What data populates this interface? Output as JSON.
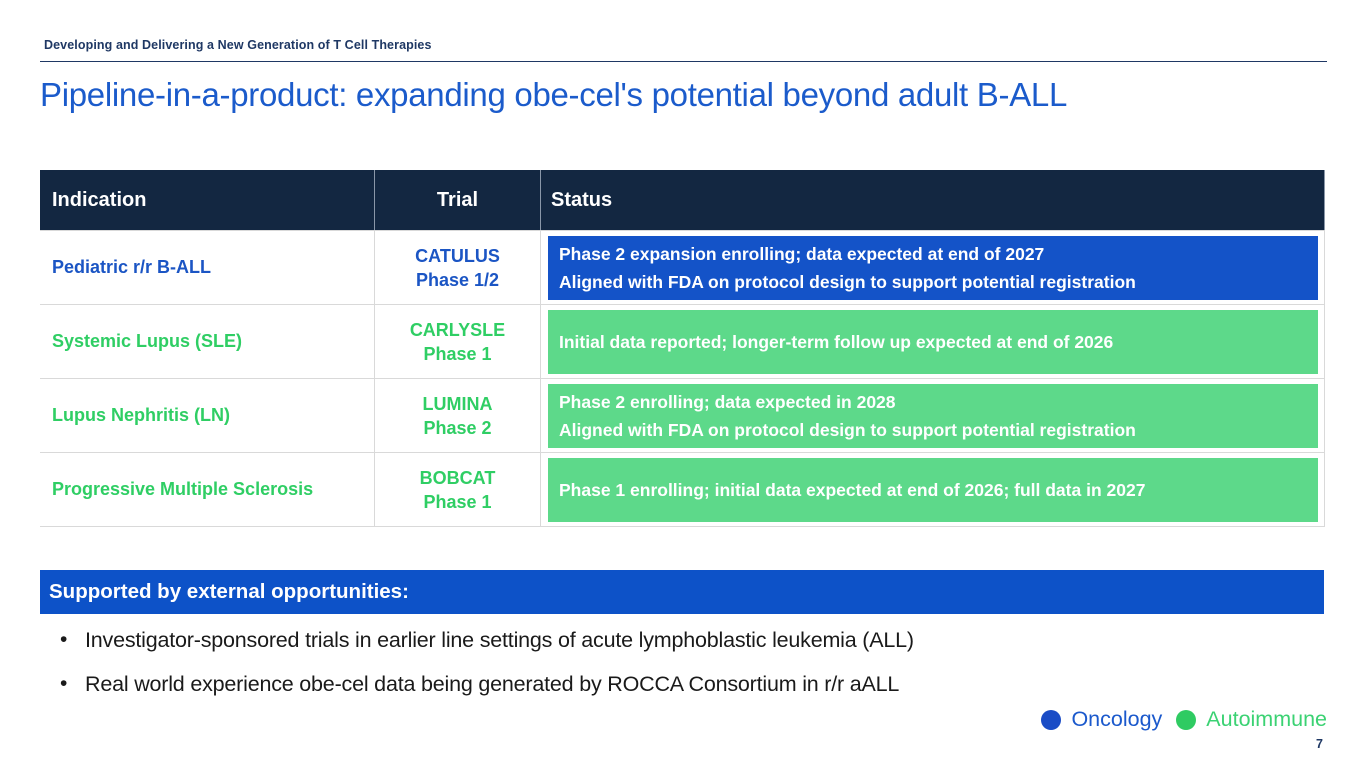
{
  "slide": {
    "eyebrow": "Developing and Delivering a New Generation of T Cell Therapies",
    "title": "Pipeline-in-a-product: expanding obe-cel's potential beyond adult B-ALL",
    "page_number": "7"
  },
  "table": {
    "columns": [
      "Indication",
      "Trial",
      "Status"
    ],
    "rows": [
      {
        "indication": "Pediatric r/r B-ALL",
        "trial_name": "CATULUS",
        "trial_phase": "Phase 1/2",
        "status_lines": [
          "Phase 2 expansion enrolling; data expected at end of 2027",
          "Aligned with FDA on protocol design to support potential registration"
        ],
        "category": "oncology"
      },
      {
        "indication": "Systemic Lupus (SLE)",
        "trial_name": "CARLYSLE",
        "trial_phase": "Phase 1",
        "status_lines": [
          "Initial data reported; longer-term follow up expected at end of 2026"
        ],
        "category": "autoimmune"
      },
      {
        "indication": "Lupus Nephritis (LN)",
        "trial_name": "LUMINA",
        "trial_phase": "Phase 2",
        "status_lines": [
          "Phase 2 enrolling; data expected in 2028",
          "Aligned with FDA on protocol design to support potential registration"
        ],
        "category": "autoimmune"
      },
      {
        "indication": "Progressive Multiple Sclerosis",
        "trial_name": "BOBCAT",
        "trial_phase": "Phase 1",
        "status_lines": [
          "Phase 1 enrolling; initial data expected at end of 2026; full data in 2027"
        ],
        "category": "autoimmune"
      }
    ]
  },
  "banner": {
    "label": "Supported by external opportunities:"
  },
  "bullets": [
    "Investigator-sponsored trials in earlier line settings of acute lymphoblastic leukemia (ALL)",
    "Real world experience obe-cel data being generated by ROCCA Consortium in r/r aALL"
  ],
  "legend": [
    {
      "label": "Oncology",
      "color": "#1a4cc6"
    },
    {
      "label": "Autoimmune",
      "color": "#2fcb62"
    }
  ],
  "colors": {
    "header_navy": "#132741",
    "royal_blue": "#1453c8",
    "banner_blue": "#0d52c8",
    "title_blue": "#1b5bcb",
    "green_text": "#2fce64",
    "green_box": "#5dd98a",
    "eyebrow_navy": "#1f3864"
  }
}
